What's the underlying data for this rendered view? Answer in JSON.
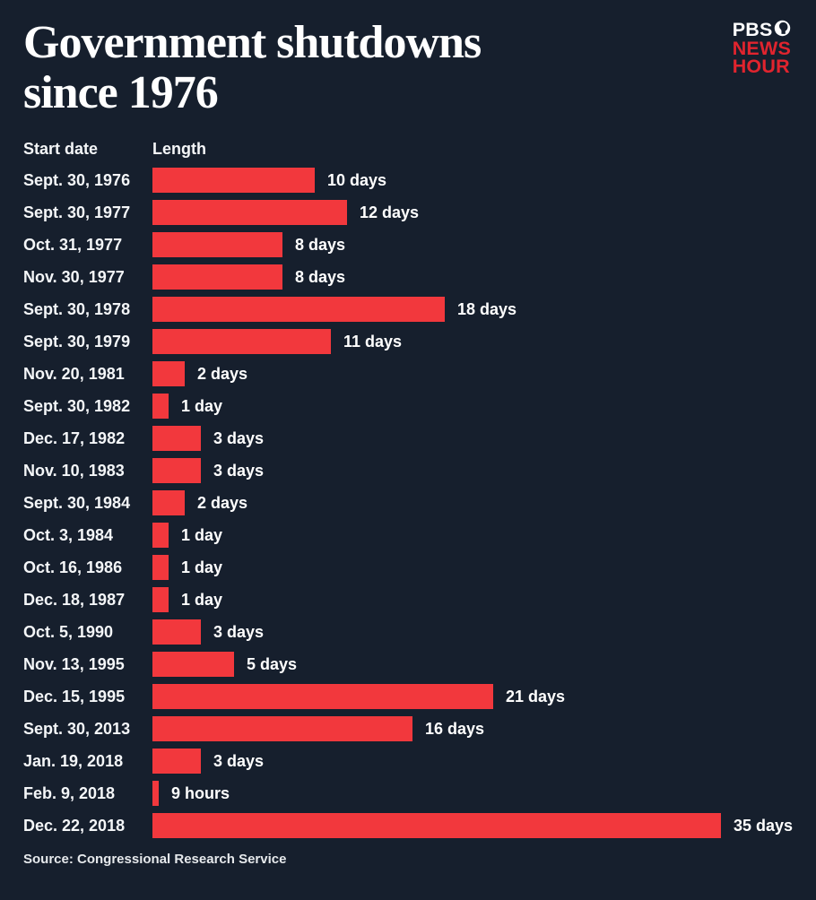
{
  "header": {
    "title_line1": "Government shutdowns",
    "title_line2": "since 1976",
    "logo": {
      "pbs": "PBS",
      "news": "NEWS",
      "hour": "HOUR"
    }
  },
  "columns": {
    "start_date": "Start date",
    "length": "Length"
  },
  "chart_data": {
    "type": "bar",
    "orientation": "horizontal",
    "title": "Government shutdowns since 1976",
    "xlabel": "Length",
    "ylabel": "Start date",
    "xlim": [
      0,
      35
    ],
    "grid": false,
    "legend": "none",
    "categories": [
      "Sept. 30, 1976",
      "Sept. 30, 1977",
      "Oct. 31, 1977",
      "Nov. 30, 1977",
      "Sept. 30, 1978",
      "Sept. 30, 1979",
      "Nov. 20, 1981",
      "Sept. 30, 1982",
      "Dec. 17, 1982",
      "Nov. 10, 1983",
      "Sept. 30, 1984",
      "Oct. 3, 1984",
      "Oct. 16, 1986",
      "Dec. 18, 1987",
      "Oct. 5, 1990",
      "Nov. 13, 1995",
      "Dec. 15, 1995",
      "Sept. 30, 2013",
      "Jan. 19, 2018",
      "Feb. 9, 2018",
      "Dec. 22, 2018"
    ],
    "values_days": [
      10,
      12,
      8,
      8,
      18,
      11,
      2,
      1,
      3,
      3,
      2,
      1,
      1,
      1,
      3,
      5,
      21,
      16,
      3,
      0.375,
      35
    ],
    "value_labels": [
      "10 days",
      "12 days",
      "8 days",
      "8 days",
      "18 days",
      "11 days",
      "2 days",
      "1 day",
      "3 days",
      "3 days",
      "2 days",
      "1 day",
      "1 day",
      "1 day",
      "3 days",
      "5 days",
      "21 days",
      "16 days",
      "3 days",
      "9 hours",
      "35 days"
    ]
  },
  "colors": {
    "background": "#161F2D",
    "bar_red": "#F2383D",
    "logo_red": "#E1242E",
    "text": "#FFFFFF"
  },
  "source": "Source: Congressional Research Service"
}
